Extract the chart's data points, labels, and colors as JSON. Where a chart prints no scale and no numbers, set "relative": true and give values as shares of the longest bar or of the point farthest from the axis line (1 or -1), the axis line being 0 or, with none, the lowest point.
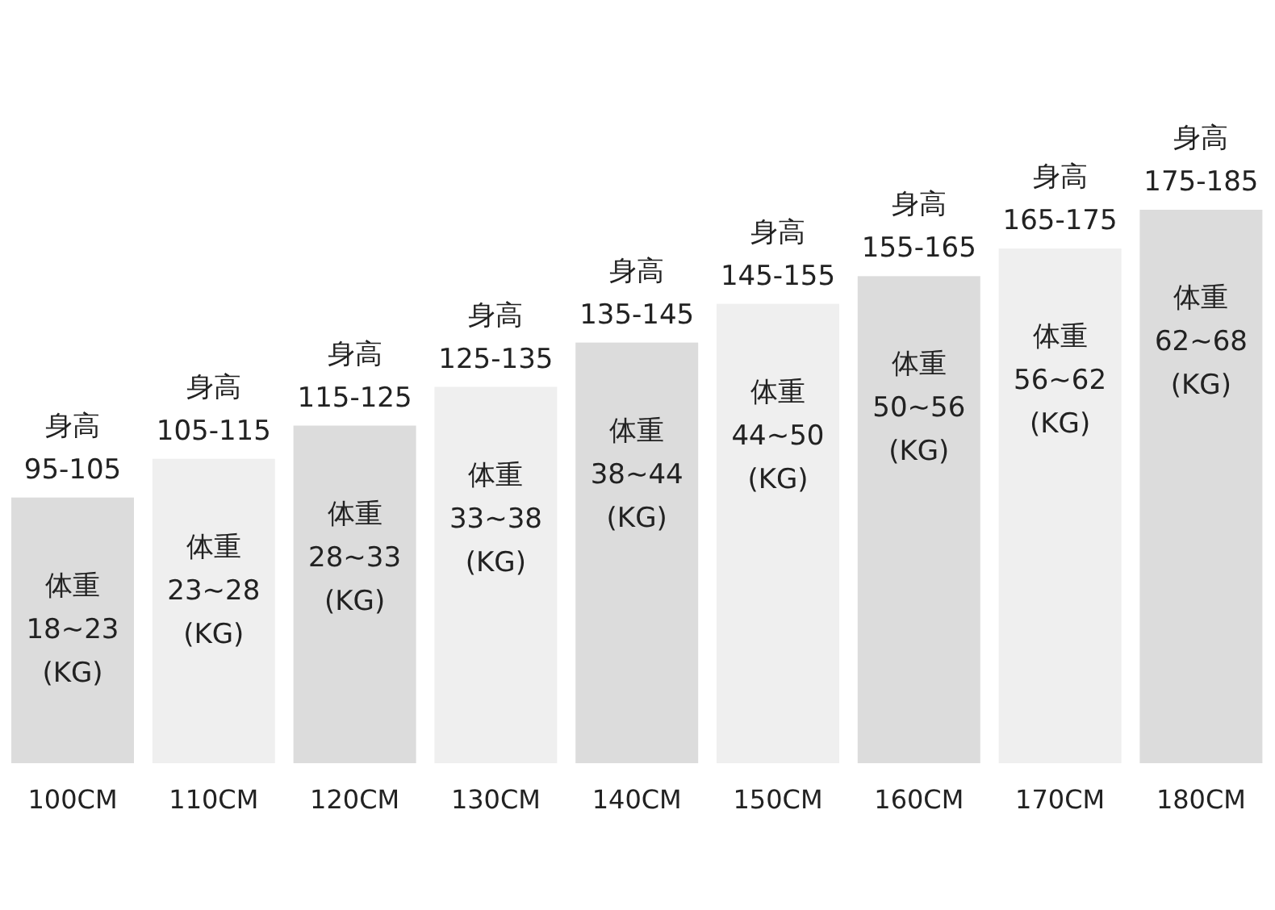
{
  "chart_data": {
    "type": "bar",
    "relative": true,
    "categories": [
      "100CM",
      "110CM",
      "120CM",
      "130CM",
      "140CM",
      "150CM",
      "160CM",
      "170CM",
      "180CM"
    ],
    "values": [
      0.48,
      0.55,
      0.61,
      0.68,
      0.76,
      0.83,
      0.88,
      0.93,
      1
    ],
    "colors": [
      "#dcdcdc",
      "#efefef",
      "#dcdcdc",
      "#efefef",
      "#dcdcdc",
      "#efefef",
      "#dcdcdc",
      "#efefef",
      "#dcdcdc"
    ],
    "annotations": [
      {
        "text": "身高 95-105",
        "x": "100CM",
        "y": 0.48
      },
      {
        "text": "体重 18~23 (KG)",
        "x": "100CM",
        "y": 0.48
      },
      {
        "text": "身高 105-115",
        "x": "110CM",
        "y": 0.55
      },
      {
        "text": "体重 23~28 (KG)",
        "x": "110CM",
        "y": 0.55
      },
      {
        "text": "身高 115-125",
        "x": "120CM",
        "y": 0.61
      },
      {
        "text": "体重 28~33 (KG)",
        "x": "120CM",
        "y": 0.61
      },
      {
        "text": "身高 125-135",
        "x": "130CM",
        "y": 0.68
      },
      {
        "text": "体重 33~38 (KG)",
        "x": "130CM",
        "y": 0.68
      },
      {
        "text": "身高 135-145",
        "x": "140CM",
        "y": 0.76
      },
      {
        "text": "体重 38~44 (KG)",
        "x": "140CM",
        "y": 0.76
      },
      {
        "text": "身高 145-155",
        "x": "150CM",
        "y": 0.83
      },
      {
        "text": "体重 44~50 (KG)",
        "x": "150CM",
        "y": 0.83
      },
      {
        "text": "身高 155-165",
        "x": "160CM",
        "y": 0.88
      },
      {
        "text": "体重 50~56 (KG)",
        "x": "160CM",
        "y": 0.88
      },
      {
        "text": "身高 165-175",
        "x": "170CM",
        "y": 0.93
      },
      {
        "text": "体重 56~62 (KG)",
        "x": "170CM",
        "y": 0.93
      },
      {
        "text": "身高 175-185",
        "x": "180CM",
        "y": 1
      },
      {
        "text": "体重 62~68 (KG)",
        "x": "180CM",
        "y": 1
      }
    ]
  }
}
